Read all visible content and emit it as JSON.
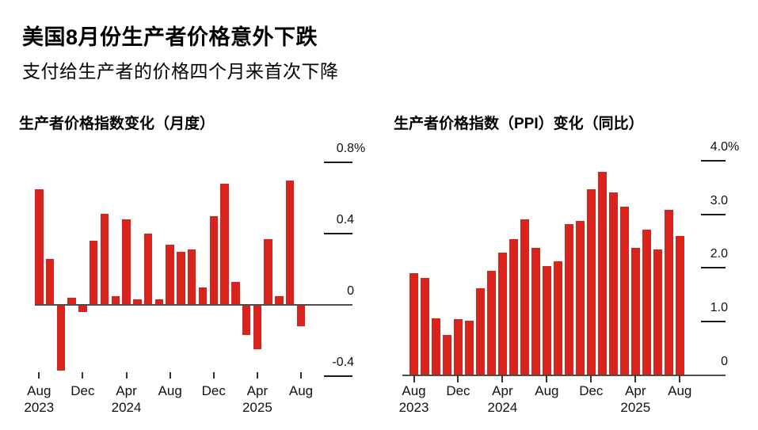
{
  "header": {
    "title": "美国8月份生产者价格意外下跌",
    "subtitle": "支付给生产者的价格四个月来首次下降"
  },
  "colors": {
    "bar": "#d8241d",
    "axis_line": "#4d4d4d",
    "grid_dash": "#1a1a1a",
    "text": "#000000"
  },
  "chart_data": [
    {
      "type": "bar",
      "title": "生产者价格指数变化（月度）",
      "unit": "%",
      "ylim": [
        -0.4,
        0.8
      ],
      "grid": "tick-dashes-right",
      "legend": "none",
      "categories": [
        "2023-08",
        "2023-09",
        "2023-10",
        "2023-11",
        "2023-12",
        "2024-01",
        "2024-02",
        "2024-03",
        "2024-04",
        "2024-05",
        "2024-06",
        "2024-07",
        "2024-08",
        "2024-09",
        "2024-10",
        "2024-11",
        "2024-12",
        "2025-01",
        "2025-02",
        "2025-03",
        "2025-04",
        "2025-05",
        "2025-06",
        "2025-07",
        "2025-08"
      ],
      "values": [
        0.65,
        0.26,
        -0.37,
        0.04,
        -0.04,
        0.36,
        0.51,
        0.05,
        0.48,
        0.03,
        0.4,
        0.03,
        0.34,
        0.3,
        0.31,
        0.1,
        0.5,
        0.68,
        0.13,
        -0.17,
        -0.25,
        0.37,
        0.05,
        0.7,
        -0.12
      ],
      "yticks": [
        {
          "value": 0.8,
          "label": "0.8",
          "suffix": "%"
        },
        {
          "value": 0.4,
          "label": "0.4"
        },
        {
          "value": 0,
          "label": "0"
        },
        {
          "value": -0.4,
          "label": "-0.4"
        }
      ],
      "xticks": [
        {
          "index": 0,
          "month": "Aug",
          "year": "2023"
        },
        {
          "index": 4,
          "month": "Dec"
        },
        {
          "index": 8,
          "month": "Apr",
          "year": "2024"
        },
        {
          "index": 12,
          "month": "Aug"
        },
        {
          "index": 16,
          "month": "Dec"
        },
        {
          "index": 20,
          "month": "Apr",
          "year": "2025"
        },
        {
          "index": 24,
          "month": "Aug"
        }
      ]
    },
    {
      "type": "bar",
      "title": "生产者价格指数（PPI）变化（同比）",
      "unit": "%",
      "ylim": [
        0,
        4.0
      ],
      "grid": "tick-dashes-right",
      "legend": "none",
      "categories": [
        "2023-08",
        "2023-09",
        "2023-10",
        "2023-11",
        "2023-12",
        "2024-01",
        "2024-02",
        "2024-03",
        "2024-04",
        "2024-05",
        "2024-06",
        "2024-07",
        "2024-08",
        "2024-09",
        "2024-10",
        "2024-11",
        "2024-12",
        "2025-01",
        "2025-02",
        "2025-03",
        "2025-04",
        "2025-05",
        "2025-06",
        "2025-07",
        "2025-08"
      ],
      "values": [
        1.9,
        1.81,
        1.06,
        0.75,
        1.04,
        1.02,
        1.62,
        1.95,
        2.29,
        2.53,
        2.91,
        2.37,
        2.04,
        2.13,
        2.82,
        2.88,
        3.47,
        3.79,
        3.41,
        3.14,
        2.37,
        2.72,
        2.34,
        3.08,
        2.59
      ],
      "yticks": [
        {
          "value": 4.0,
          "label": "4.0",
          "suffix": "%"
        },
        {
          "value": 3.0,
          "label": "3.0"
        },
        {
          "value": 2.0,
          "label": "2.0"
        },
        {
          "value": 1.0,
          "label": "1.0"
        },
        {
          "value": 0,
          "label": "0"
        }
      ],
      "xticks": [
        {
          "index": 0,
          "month": "Aug",
          "year": "2023"
        },
        {
          "index": 4,
          "month": "Dec"
        },
        {
          "index": 8,
          "month": "Apr",
          "year": "2024"
        },
        {
          "index": 12,
          "month": "Aug"
        },
        {
          "index": 16,
          "month": "Dec"
        },
        {
          "index": 20,
          "month": "Apr",
          "year": "2025"
        },
        {
          "index": 24,
          "month": "Aug"
        }
      ]
    }
  ]
}
